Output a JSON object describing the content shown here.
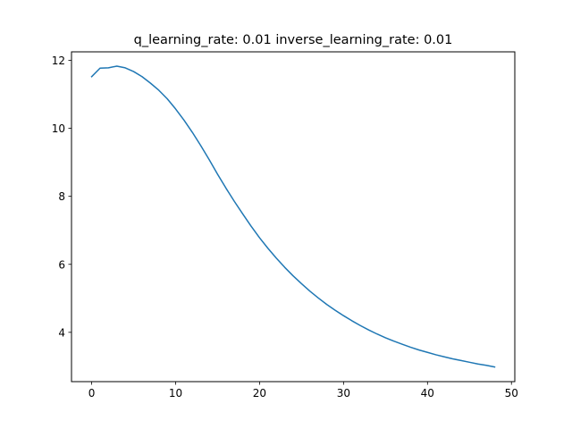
{
  "chart_data": {
    "type": "line",
    "title": "q_learning_rate: 0.01 inverse_learning_rate: 0.01",
    "xlabel": "",
    "ylabel": "",
    "xlim": [
      -2.4,
      50.4
    ],
    "ylim": [
      2.55,
      12.25
    ],
    "xticks": [
      0,
      10,
      20,
      30,
      40,
      50
    ],
    "yticks": [
      4,
      6,
      8,
      10,
      12
    ],
    "grid": false,
    "series": [
      {
        "color": "#1f77b4",
        "x": [
          0,
          1,
          2,
          3,
          4,
          5,
          6,
          7,
          8,
          9,
          10,
          11,
          12,
          13,
          14,
          15,
          16,
          17,
          18,
          19,
          20,
          21,
          22,
          23,
          24,
          25,
          26,
          27,
          28,
          29,
          30,
          31,
          32,
          33,
          34,
          35,
          36,
          37,
          38,
          39,
          40,
          41,
          42,
          43,
          44,
          45,
          46,
          47,
          48
        ],
        "y": [
          11.52,
          11.77,
          11.78,
          11.83,
          11.78,
          11.67,
          11.52,
          11.33,
          11.12,
          10.87,
          10.57,
          10.24,
          9.88,
          9.49,
          9.08,
          8.65,
          8.24,
          7.85,
          7.48,
          7.12,
          6.78,
          6.47,
          6.18,
          5.91,
          5.66,
          5.43,
          5.21,
          5.01,
          4.82,
          4.65,
          4.49,
          4.34,
          4.2,
          4.07,
          3.95,
          3.84,
          3.74,
          3.65,
          3.56,
          3.48,
          3.41,
          3.34,
          3.28,
          3.22,
          3.17,
          3.12,
          3.07,
          3.03,
          2.98
        ]
      }
    ]
  }
}
